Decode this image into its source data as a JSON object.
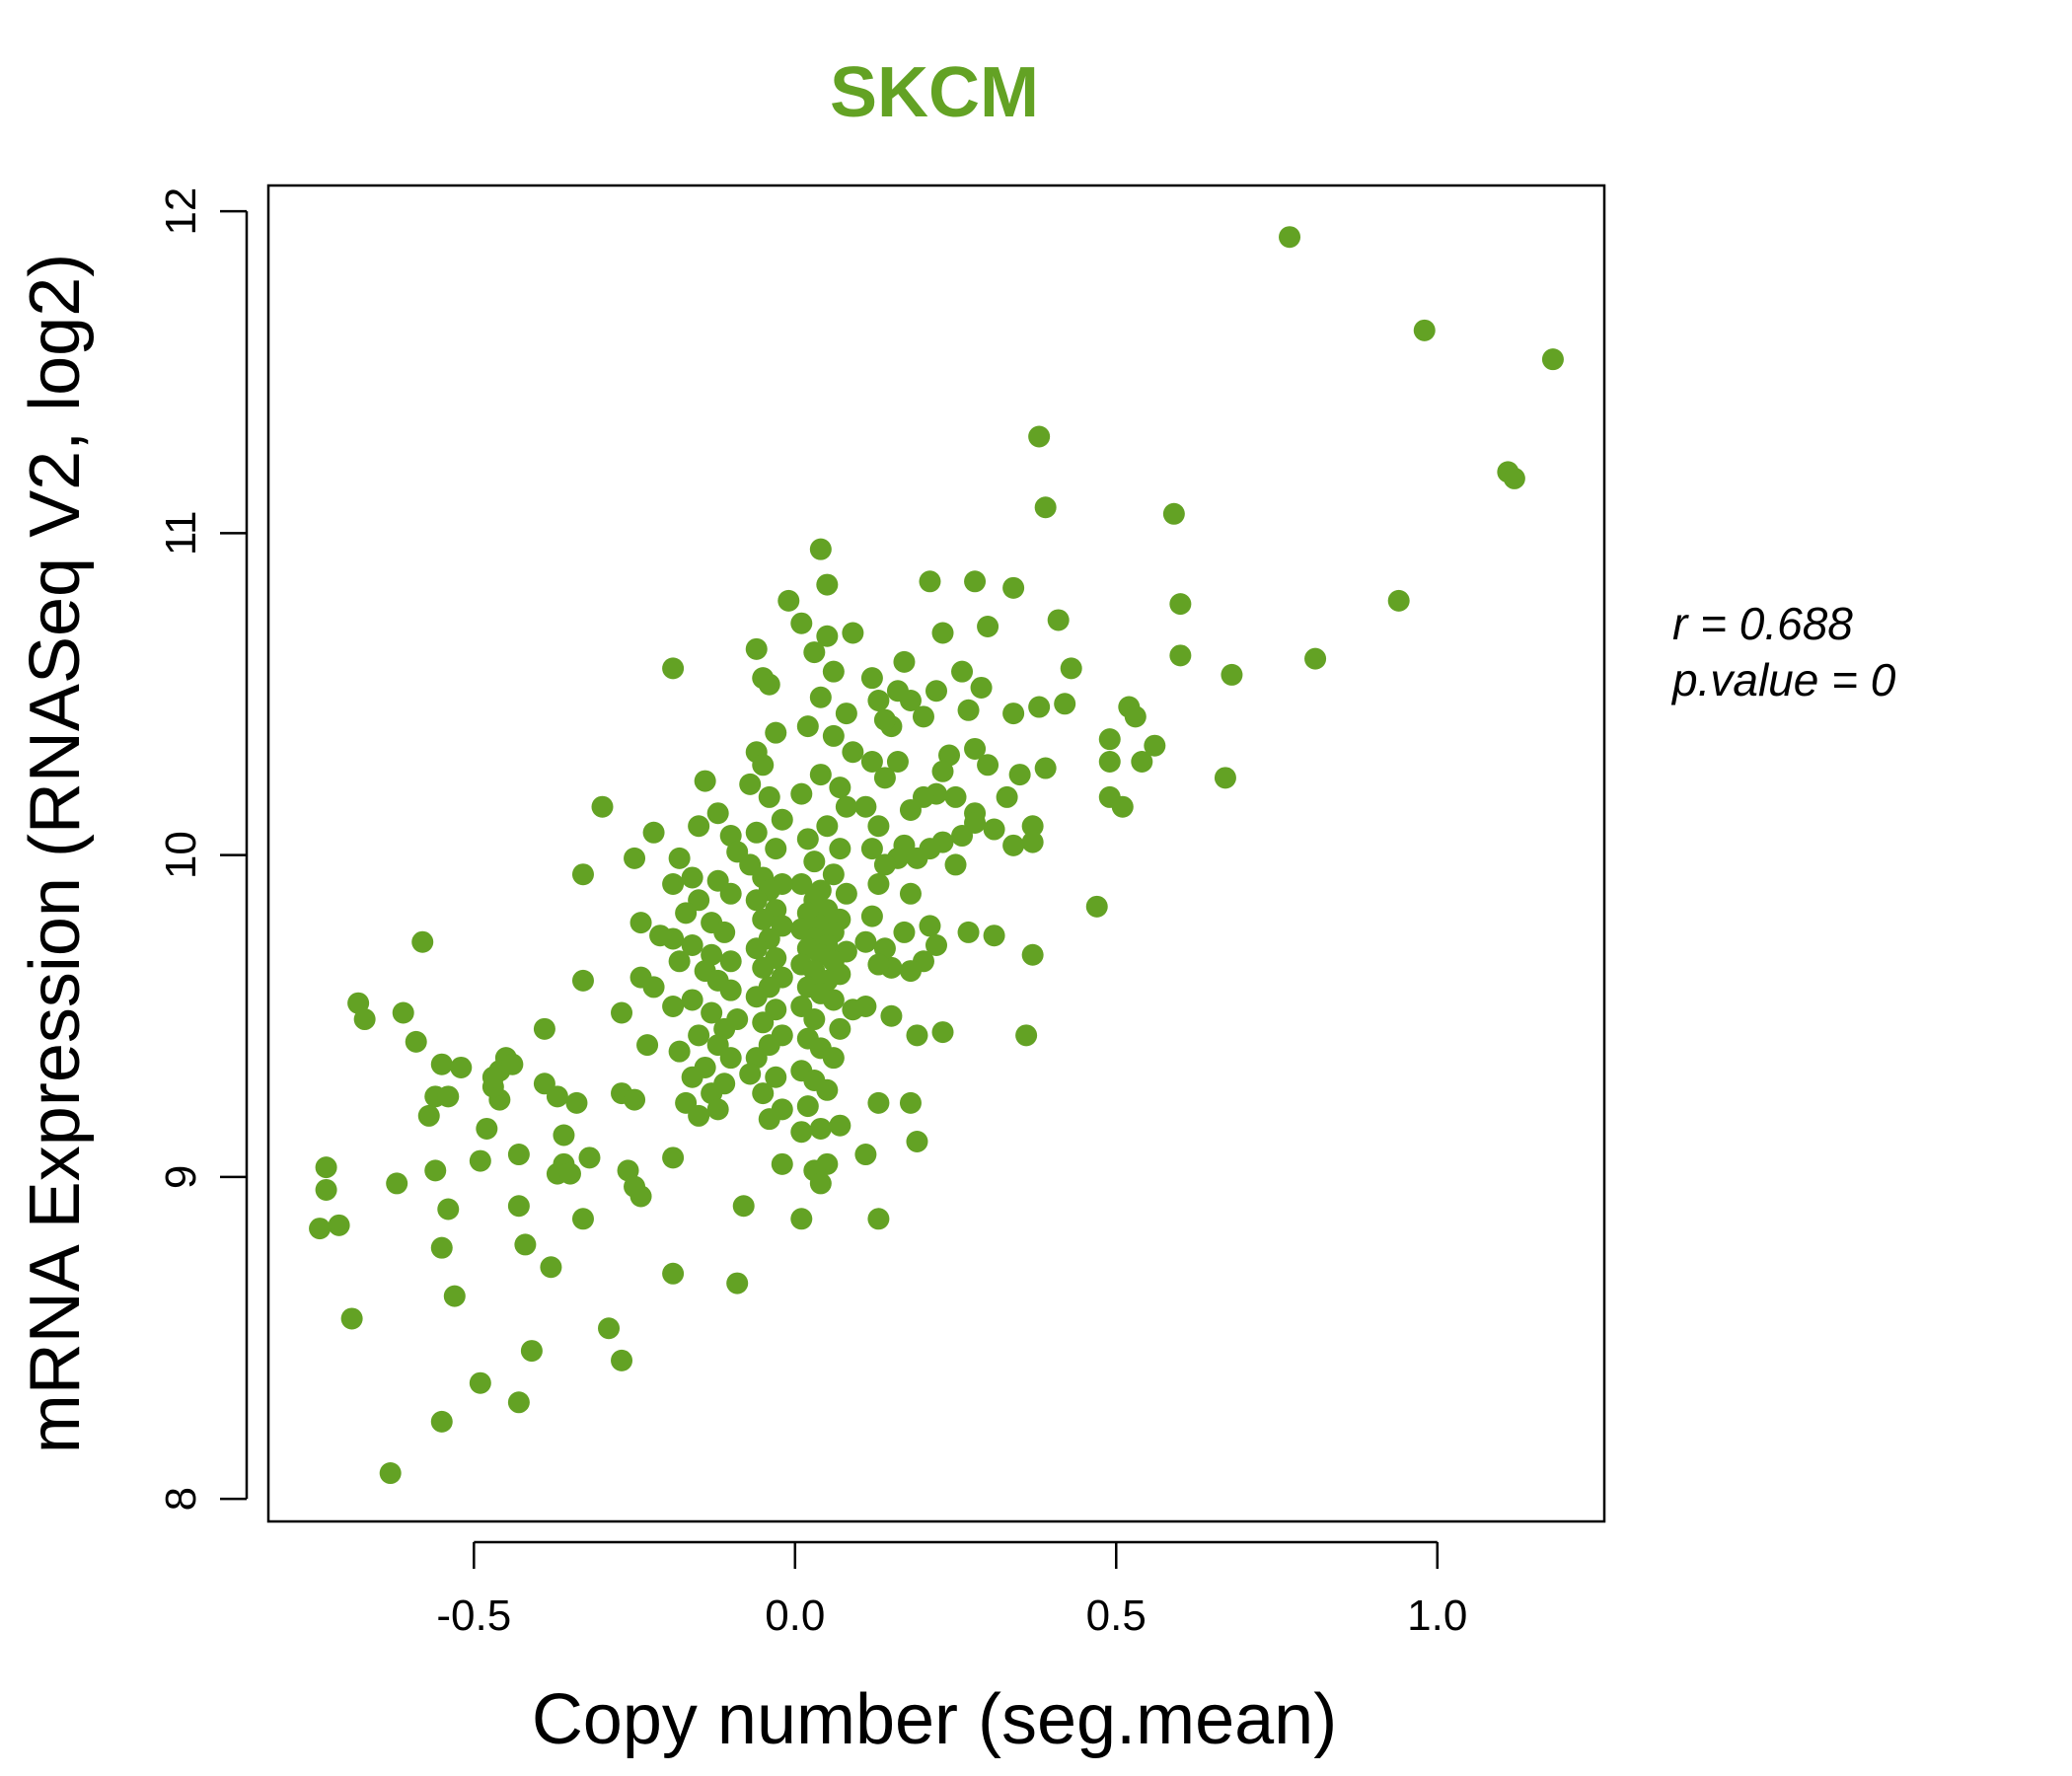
{
  "chart_data": {
    "type": "scatter",
    "title": "SKCM",
    "xlabel": "Copy number (seg.mean)",
    "ylabel": "mRNA Expression (RNASeq V2, log2)",
    "xlim": [
      -0.82,
      1.26
    ],
    "ylim": [
      7.93,
      12.08
    ],
    "x_ticks": [
      -0.5,
      0.0,
      0.5,
      1.0
    ],
    "x_tick_labels": [
      "-0.5",
      "0.0",
      "0.5",
      "1.0"
    ],
    "y_ticks": [
      8,
      9,
      10,
      11,
      12
    ],
    "y_tick_labels": [
      "8",
      "9",
      "10",
      "11",
      "12"
    ],
    "annotations": [
      "r = 0.688",
      "p.value = 0"
    ],
    "grid": false,
    "colors": {
      "title": "#63a224",
      "points": "#63a224"
    },
    "points": [
      [
        0.77,
        11.92
      ],
      [
        0.98,
        11.63
      ],
      [
        1.18,
        11.54
      ],
      [
        1.11,
        11.19
      ],
      [
        1.12,
        11.17
      ],
      [
        0.38,
        11.3
      ],
      [
        0.39,
        11.08
      ],
      [
        0.59,
        11.06
      ],
      [
        0.94,
        10.79
      ],
      [
        0.81,
        10.61
      ],
      [
        0.6,
        10.78
      ],
      [
        0.6,
        10.62
      ],
      [
        0.68,
        10.56
      ],
      [
        0.67,
        10.24
      ],
      [
        0.52,
        10.46
      ],
      [
        0.53,
        10.43
      ],
      [
        0.49,
        10.36
      ],
      [
        0.49,
        10.29
      ],
      [
        0.54,
        10.29
      ],
      [
        0.56,
        10.34
      ],
      [
        0.49,
        10.18
      ],
      [
        0.51,
        10.15
      ],
      [
        0.47,
        9.84
      ],
      [
        0.41,
        10.73
      ],
      [
        0.43,
        10.58
      ],
      [
        0.42,
        10.47
      ],
      [
        0.38,
        10.46
      ],
      [
        0.39,
        10.27
      ],
      [
        0.37,
        10.09
      ],
      [
        0.37,
        10.04
      ],
      [
        0.37,
        9.69
      ],
      [
        0.36,
        9.44
      ],
      [
        0.34,
        10.83
      ],
      [
        0.34,
        10.44
      ],
      [
        0.35,
        10.25
      ],
      [
        0.33,
        10.18
      ],
      [
        0.31,
        10.08
      ],
      [
        0.34,
        10.03
      ],
      [
        0.31,
        9.75
      ],
      [
        0.27,
        9.76
      ],
      [
        0.28,
        10.85
      ],
      [
        0.3,
        10.71
      ],
      [
        0.26,
        10.57
      ],
      [
        0.29,
        10.52
      ],
      [
        0.27,
        10.45
      ],
      [
        0.24,
        10.31
      ],
      [
        0.28,
        10.33
      ],
      [
        0.3,
        10.28
      ],
      [
        0.28,
        10.13
      ],
      [
        0.28,
        10.1
      ],
      [
        0.25,
        10.18
      ],
      [
        0.26,
        10.06
      ],
      [
        0.25,
        9.97
      ],
      [
        0.21,
        10.85
      ],
      [
        0.23,
        10.69
      ],
      [
        0.22,
        10.51
      ],
      [
        0.2,
        10.43
      ],
      [
        0.23,
        10.26
      ],
      [
        0.22,
        10.19
      ],
      [
        0.2,
        10.18
      ],
      [
        0.23,
        10.04
      ],
      [
        0.21,
        10.02
      ],
      [
        0.21,
        9.78
      ],
      [
        0.22,
        9.72
      ],
      [
        0.2,
        9.67
      ],
      [
        0.23,
        9.45
      ],
      [
        0.17,
        10.6
      ],
      [
        0.18,
        10.48
      ],
      [
        0.16,
        10.51
      ],
      [
        0.15,
        10.4
      ],
      [
        0.16,
        10.29
      ],
      [
        0.18,
        10.14
      ],
      [
        0.17,
        10.03
      ],
      [
        0.16,
        9.99
      ],
      [
        0.19,
        9.99
      ],
      [
        0.18,
        9.88
      ],
      [
        0.17,
        9.76
      ],
      [
        0.15,
        9.65
      ],
      [
        0.18,
        9.64
      ],
      [
        0.19,
        9.44
      ],
      [
        0.18,
        9.23
      ],
      [
        0.19,
        9.11
      ],
      [
        0.12,
        10.55
      ],
      [
        0.13,
        10.48
      ],
      [
        0.14,
        10.42
      ],
      [
        0.12,
        10.29
      ],
      [
        0.14,
        10.24
      ],
      [
        0.11,
        10.15
      ],
      [
        0.13,
        10.09
      ],
      [
        0.12,
        10.02
      ],
      [
        0.14,
        9.97
      ],
      [
        0.13,
        9.91
      ],
      [
        0.12,
        9.81
      ],
      [
        0.11,
        9.73
      ],
      [
        0.14,
        9.71
      ],
      [
        0.13,
        9.66
      ],
      [
        0.11,
        9.53
      ],
      [
        0.15,
        9.5
      ],
      [
        0.13,
        9.23
      ],
      [
        0.11,
        9.07
      ],
      [
        0.13,
        8.87
      ],
      [
        0.04,
        10.95
      ],
      [
        0.05,
        10.84
      ],
      [
        0.01,
        10.72
      ],
      [
        0.05,
        10.68
      ],
      [
        0.09,
        10.69
      ],
      [
        0.03,
        10.63
      ],
      [
        0.06,
        10.57
      ],
      [
        0.04,
        10.49
      ],
      [
        0.08,
        10.44
      ],
      [
        0.02,
        10.4
      ],
      [
        0.06,
        10.37
      ],
      [
        0.09,
        10.32
      ],
      [
        0.04,
        10.25
      ],
      [
        0.07,
        10.21
      ],
      [
        0.01,
        10.19
      ],
      [
        0.08,
        10.15
      ],
      [
        0.05,
        10.09
      ],
      [
        0.02,
        10.05
      ],
      [
        0.07,
        10.02
      ],
      [
        0.03,
        9.98
      ],
      [
        0.06,
        9.94
      ],
      [
        0.01,
        9.91
      ],
      [
        0.04,
        9.89
      ],
      [
        0.08,
        9.88
      ],
      [
        0.03,
        9.86
      ],
      [
        0.05,
        9.83
      ],
      [
        0.02,
        9.82
      ],
      [
        0.07,
        9.8
      ],
      [
        0.04,
        9.78
      ],
      [
        0.01,
        9.77
      ],
      [
        0.06,
        9.76
      ],
      [
        0.03,
        9.74
      ],
      [
        0.05,
        9.72
      ],
      [
        0.02,
        9.71
      ],
      [
        0.08,
        9.7
      ],
      [
        0.04,
        9.69
      ],
      [
        0.06,
        9.67
      ],
      [
        0.01,
        9.66
      ],
      [
        0.03,
        9.64
      ],
      [
        0.07,
        9.63
      ],
      [
        0.05,
        9.61
      ],
      [
        0.02,
        9.59
      ],
      [
        0.04,
        9.57
      ],
      [
        0.06,
        9.55
      ],
      [
        0.01,
        9.53
      ],
      [
        0.09,
        9.52
      ],
      [
        0.03,
        9.49
      ],
      [
        0.07,
        9.46
      ],
      [
        0.02,
        9.43
      ],
      [
        0.04,
        9.4
      ],
      [
        0.06,
        9.37
      ],
      [
        0.01,
        9.33
      ],
      [
        0.03,
        9.3
      ],
      [
        0.05,
        9.27
      ],
      [
        0.02,
        9.22
      ],
      [
        0.04,
        9.15
      ],
      [
        0.07,
        9.16
      ],
      [
        0.01,
        9.14
      ],
      [
        0.05,
        9.04
      ],
      [
        0.03,
        9.02
      ],
      [
        0.04,
        8.98
      ],
      [
        0.01,
        8.87
      ],
      [
        -0.06,
        10.64
      ],
      [
        -0.05,
        10.55
      ],
      [
        -0.04,
        10.53
      ],
      [
        -0.06,
        10.32
      ],
      [
        -0.03,
        10.38
      ],
      [
        -0.05,
        10.28
      ],
      [
        -0.07,
        10.22
      ],
      [
        -0.04,
        10.18
      ],
      [
        -0.02,
        10.11
      ],
      [
        -0.06,
        10.07
      ],
      [
        -0.03,
        10.02
      ],
      [
        -0.07,
        9.97
      ],
      [
        -0.05,
        9.93
      ],
      [
        -0.02,
        9.91
      ],
      [
        -0.04,
        9.89
      ],
      [
        -0.06,
        9.86
      ],
      [
        -0.03,
        9.83
      ],
      [
        -0.05,
        9.8
      ],
      [
        -0.02,
        9.78
      ],
      [
        -0.04,
        9.74
      ],
      [
        -0.06,
        9.71
      ],
      [
        -0.03,
        9.68
      ],
      [
        -0.05,
        9.65
      ],
      [
        -0.02,
        9.62
      ],
      [
        -0.04,
        9.59
      ],
      [
        -0.06,
        9.56
      ],
      [
        -0.03,
        9.52
      ],
      [
        -0.05,
        9.48
      ],
      [
        -0.02,
        9.44
      ],
      [
        -0.04,
        9.41
      ],
      [
        -0.06,
        9.37
      ],
      [
        -0.03,
        9.31
      ],
      [
        -0.05,
        9.26
      ],
      [
        -0.02,
        9.21
      ],
      [
        -0.04,
        9.18
      ],
      [
        -0.07,
        9.32
      ],
      [
        -0.02,
        9.04
      ],
      [
        -0.08,
        8.91
      ],
      [
        -0.01,
        10.79
      ],
      [
        -0.19,
        10.58
      ],
      [
        -0.14,
        10.23
      ],
      [
        -0.12,
        10.13
      ],
      [
        -0.15,
        10.09
      ],
      [
        -0.1,
        10.06
      ],
      [
        -0.09,
        10.01
      ],
      [
        -0.18,
        9.99
      ],
      [
        -0.16,
        9.93
      ],
      [
        -0.12,
        9.92
      ],
      [
        -0.1,
        9.88
      ],
      [
        -0.19,
        9.91
      ],
      [
        -0.15,
        9.86
      ],
      [
        -0.17,
        9.82
      ],
      [
        -0.13,
        9.79
      ],
      [
        -0.11,
        9.76
      ],
      [
        -0.19,
        9.74
      ],
      [
        -0.16,
        9.72
      ],
      [
        -0.13,
        9.69
      ],
      [
        -0.1,
        9.67
      ],
      [
        -0.18,
        9.67
      ],
      [
        -0.14,
        9.64
      ],
      [
        -0.12,
        9.61
      ],
      [
        -0.1,
        9.58
      ],
      [
        -0.16,
        9.55
      ],
      [
        -0.19,
        9.53
      ],
      [
        -0.13,
        9.51
      ],
      [
        -0.09,
        9.49
      ],
      [
        -0.11,
        9.46
      ],
      [
        -0.15,
        9.44
      ],
      [
        -0.12,
        9.41
      ],
      [
        -0.18,
        9.39
      ],
      [
        -0.1,
        9.37
      ],
      [
        -0.14,
        9.34
      ],
      [
        -0.16,
        9.31
      ],
      [
        -0.11,
        9.29
      ],
      [
        -0.13,
        9.26
      ],
      [
        -0.17,
        9.23
      ],
      [
        -0.12,
        9.21
      ],
      [
        -0.15,
        9.19
      ],
      [
        -0.19,
        9.06
      ],
      [
        -0.19,
        8.7
      ],
      [
        -0.09,
        8.67
      ],
      [
        -0.3,
        10.15
      ],
      [
        -0.22,
        10.07
      ],
      [
        -0.25,
        9.99
      ],
      [
        -0.33,
        9.94
      ],
      [
        -0.24,
        9.79
      ],
      [
        -0.21,
        9.75
      ],
      [
        -0.24,
        9.62
      ],
      [
        -0.22,
        9.59
      ],
      [
        -0.33,
        9.61
      ],
      [
        -0.27,
        9.51
      ],
      [
        -0.23,
        9.41
      ],
      [
        -0.27,
        9.26
      ],
      [
        -0.25,
        9.24
      ],
      [
        -0.34,
        9.23
      ],
      [
        -0.26,
        9.02
      ],
      [
        -0.25,
        8.97
      ],
      [
        -0.24,
        8.94
      ],
      [
        -0.32,
        9.06
      ],
      [
        -0.33,
        8.87
      ],
      [
        -0.29,
        8.53
      ],
      [
        -0.27,
        8.43
      ],
      [
        -0.39,
        9.46
      ],
      [
        -0.39,
        9.29
      ],
      [
        -0.37,
        9.25
      ],
      [
        -0.36,
        9.13
      ],
      [
        -0.36,
        9.04
      ],
      [
        -0.37,
        9.01
      ],
      [
        -0.35,
        9.01
      ],
      [
        -0.38,
        8.72
      ],
      [
        -0.41,
        8.46
      ],
      [
        -0.43,
        9.07
      ],
      [
        -0.43,
        8.91
      ],
      [
        -0.42,
        8.79
      ],
      [
        -0.43,
        8.3
      ],
      [
        -0.45,
        9.37
      ],
      [
        -0.46,
        9.33
      ],
      [
        -0.46,
        9.24
      ],
      [
        -0.47,
        9.28
      ],
      [
        -0.44,
        9.35
      ],
      [
        -0.47,
        9.31
      ],
      [
        -0.48,
        9.15
      ],
      [
        -0.49,
        9.05
      ],
      [
        -0.49,
        8.36
      ],
      [
        -0.52,
        9.34
      ],
      [
        -0.55,
        9.35
      ],
      [
        -0.56,
        9.25
      ],
      [
        -0.54,
        9.25
      ],
      [
        -0.57,
        9.19
      ],
      [
        -0.56,
        9.02
      ],
      [
        -0.54,
        8.9
      ],
      [
        -0.55,
        8.78
      ],
      [
        -0.53,
        8.63
      ],
      [
        -0.55,
        8.24
      ],
      [
        -0.58,
        9.73
      ],
      [
        -0.59,
        9.42
      ],
      [
        -0.61,
        9.51
      ],
      [
        -0.62,
        8.98
      ],
      [
        -0.63,
        8.08
      ],
      [
        -0.67,
        9.49
      ],
      [
        -0.68,
        9.54
      ],
      [
        -0.69,
        8.56
      ],
      [
        -0.73,
        9.03
      ],
      [
        -0.73,
        8.96
      ],
      [
        -0.71,
        8.85
      ],
      [
        -0.74,
        8.84
      ]
    ]
  }
}
